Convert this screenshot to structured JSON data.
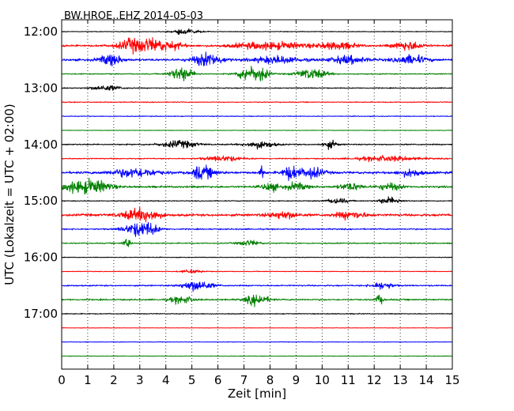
{
  "chart_data": {
    "type": "line",
    "title": "BW.HROE..EHZ 2014-05-03",
    "xlabel": "Zeit  [min]",
    "ylabel": "UTC (Lokalzeit = UTC + 02:00)",
    "xlim": [
      0,
      15
    ],
    "x_ticks": [
      0,
      1,
      2,
      3,
      4,
      5,
      6,
      7,
      8,
      9,
      10,
      11,
      12,
      13,
      14,
      15
    ],
    "y_ticks": [
      "12:00",
      "13:00",
      "14:00",
      "15:00",
      "16:00",
      "17:00"
    ],
    "vertical_grid": "dotted",
    "trace_interval_min": 15,
    "color_cycle": [
      "#000000",
      "#ff0000",
      "#0000ff",
      "#008000"
    ],
    "traces": [
      {
        "start": "12:00",
        "color": "#000000",
        "noise": 0.6,
        "bursts": [
          [
            4.8,
            0.4,
            3
          ]
        ]
      },
      {
        "start": "12:15",
        "color": "#ff0000",
        "noise": 1.6,
        "bursts": [
          [
            2.9,
            0.5,
            7
          ],
          [
            3.3,
            0.4,
            8
          ],
          [
            4.3,
            0.3,
            4
          ],
          [
            8.0,
            1.0,
            4
          ],
          [
            10.6,
            0.5,
            4
          ],
          [
            13.3,
            0.4,
            5
          ]
        ]
      },
      {
        "start": "12:30",
        "color": "#0000ff",
        "noise": 2.0,
        "bursts": [
          [
            1.9,
            0.3,
            6
          ],
          [
            5.6,
            0.4,
            7
          ],
          [
            8.3,
            0.6,
            4
          ],
          [
            11.0,
            0.5,
            4
          ],
          [
            13.4,
            0.4,
            5
          ]
        ]
      },
      {
        "start": "12:45",
        "color": "#008000",
        "noise": 1.0,
        "bursts": [
          [
            4.6,
            0.3,
            8
          ],
          [
            7.2,
            0.3,
            9
          ],
          [
            7.7,
            0.2,
            6
          ],
          [
            9.6,
            0.4,
            6
          ]
        ]
      },
      {
        "start": "13:00",
        "color": "#000000",
        "noise": 0.9,
        "bursts": [
          [
            1.7,
            0.4,
            3
          ]
        ]
      },
      {
        "start": "13:15",
        "color": "#ff0000",
        "noise": 0.8,
        "bursts": []
      },
      {
        "start": "13:30",
        "color": "#0000ff",
        "noise": 0.7,
        "bursts": []
      },
      {
        "start": "13:45",
        "color": "#008000",
        "noise": 0.5,
        "bursts": []
      },
      {
        "start": "14:00",
        "color": "#000000",
        "noise": 1.1,
        "bursts": [
          [
            4.5,
            0.5,
            4
          ],
          [
            7.6,
            0.4,
            4
          ],
          [
            10.3,
            0.2,
            4
          ]
        ]
      },
      {
        "start": "14:15",
        "color": "#ff0000",
        "noise": 1.0,
        "bursts": [
          [
            6.2,
            0.5,
            3
          ],
          [
            12.5,
            0.8,
            3
          ]
        ]
      },
      {
        "start": "14:30",
        "color": "#0000ff",
        "noise": 2.2,
        "bursts": [
          [
            2.8,
            0.6,
            5
          ],
          [
            5.2,
            0.05,
            14
          ],
          [
            5.5,
            0.3,
            6
          ],
          [
            7.7,
            0.05,
            10
          ],
          [
            8.8,
            0.2,
            9
          ],
          [
            9.6,
            0.3,
            6
          ],
          [
            13.4,
            0.3,
            4
          ]
        ]
      },
      {
        "start": "14:45",
        "color": "#008000",
        "noise": 1.8,
        "bursts": [
          [
            0.6,
            0.5,
            6
          ],
          [
            1.4,
            0.4,
            5
          ],
          [
            8.0,
            0.2,
            5
          ],
          [
            9.0,
            0.3,
            4
          ],
          [
            11.1,
            0.3,
            4
          ],
          [
            12.6,
            0.3,
            4
          ]
        ]
      },
      {
        "start": "15:00",
        "color": "#000000",
        "noise": 0.8,
        "bursts": [
          [
            10.6,
            0.3,
            3
          ],
          [
            12.6,
            0.3,
            4
          ]
        ]
      },
      {
        "start": "15:15",
        "color": "#ff0000",
        "noise": 2.2,
        "bursts": [
          [
            2.8,
            0.4,
            5
          ],
          [
            3.4,
            0.3,
            5
          ],
          [
            8.5,
            0.4,
            4
          ],
          [
            11.1,
            0.4,
            4
          ]
        ]
      },
      {
        "start": "15:30",
        "color": "#0000ff",
        "noise": 1.2,
        "bursts": [
          [
            2.9,
            0.4,
            6
          ],
          [
            3.3,
            0.3,
            5
          ]
        ]
      },
      {
        "start": "15:45",
        "color": "#008000",
        "noise": 1.0,
        "bursts": [
          [
            2.5,
            0.1,
            6
          ],
          [
            7.2,
            0.3,
            3
          ]
        ]
      },
      {
        "start": "16:00",
        "color": "#000000",
        "noise": 0.6,
        "bursts": []
      },
      {
        "start": "16:15",
        "color": "#ff0000",
        "noise": 0.6,
        "bursts": [
          [
            5.0,
            0.3,
            2
          ]
        ]
      },
      {
        "start": "16:30",
        "color": "#0000ff",
        "noise": 1.2,
        "bursts": [
          [
            5.2,
            0.4,
            6
          ],
          [
            12.3,
            0.3,
            4
          ]
        ]
      },
      {
        "start": "16:45",
        "color": "#008000",
        "noise": 1.4,
        "bursts": [
          [
            4.6,
            0.3,
            4
          ],
          [
            7.5,
            0.3,
            6
          ],
          [
            12.2,
            0.1,
            5
          ]
        ]
      },
      {
        "start": "17:00",
        "color": "#000000",
        "noise": 0.8,
        "bursts": []
      },
      {
        "start": "17:15",
        "color": "#ff0000",
        "noise": 0.4,
        "bursts": []
      },
      {
        "start": "17:30",
        "color": "#0000ff",
        "noise": 0.5,
        "bursts": []
      },
      {
        "start": "17:45",
        "color": "#008000",
        "noise": 0.5,
        "bursts": []
      }
    ]
  }
}
